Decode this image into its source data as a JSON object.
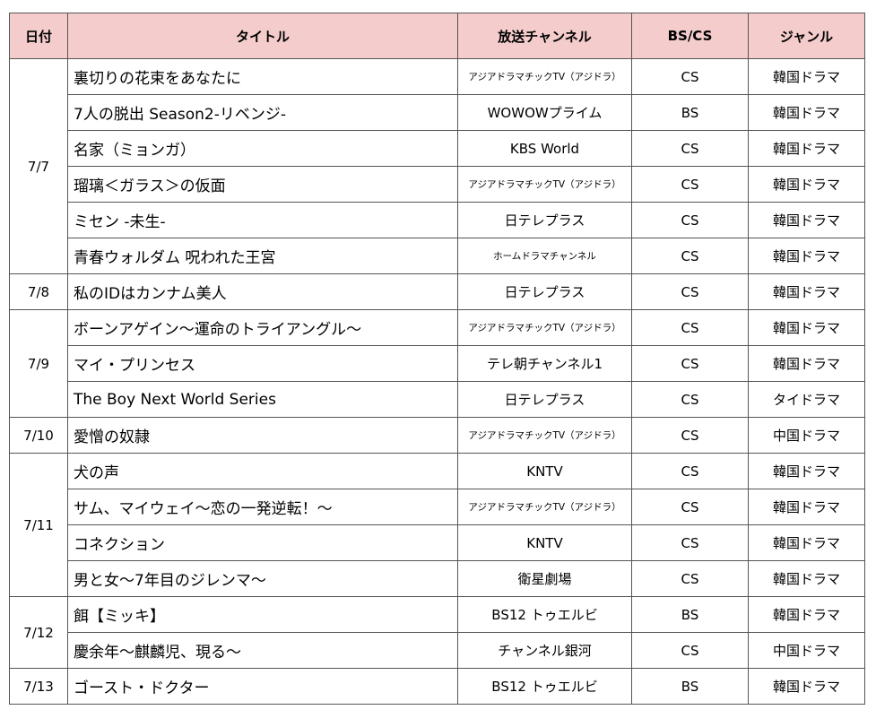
{
  "header": {
    "date": "日付",
    "title": "タイトル",
    "channel": "放送チャンネル",
    "bscs": "BS/CS",
    "genre": "ジャンル"
  },
  "groups": [
    {
      "date": "7/7",
      "rows": [
        {
          "title": "裏切りの花束をあなたに",
          "channel": "アジアドラマチックTV（アジドラ）",
          "small": true,
          "bscs": "CS",
          "genre": "韓国ドラマ"
        },
        {
          "title": "7人の脱出 Season2-リベンジ-",
          "channel": "WOWOWプライム",
          "small": false,
          "bscs": "BS",
          "genre": "韓国ドラマ"
        },
        {
          "title": "名家（ミョンガ）",
          "channel": "KBS World",
          "small": false,
          "bscs": "CS",
          "genre": "韓国ドラマ"
        },
        {
          "title": "瑠璃＜ガラス＞の仮面",
          "channel": "アジアドラマチックTV（アジドラ）",
          "small": true,
          "bscs": "CS",
          "genre": "韓国ドラマ"
        },
        {
          "title": "ミセン -未生-",
          "channel": "日テレプラス",
          "small": false,
          "bscs": "CS",
          "genre": "韓国ドラマ"
        },
        {
          "title": "青春ウォルダム 呪われた王宮",
          "channel": "ホームドラマチャンネル",
          "small": true,
          "bscs": "CS",
          "genre": "韓国ドラマ"
        }
      ]
    },
    {
      "date": "7/8",
      "rows": [
        {
          "title": "私のIDはカンナム美人",
          "channel": "日テレプラス",
          "small": false,
          "bscs": "CS",
          "genre": "韓国ドラマ"
        }
      ]
    },
    {
      "date": "7/9",
      "rows": [
        {
          "title": "ボーンアゲイン～運命のトライアングル～",
          "channel": "アジアドラマチックTV（アジドラ）",
          "small": true,
          "bscs": "CS",
          "genre": "韓国ドラマ"
        },
        {
          "title": "マイ・プリンセス",
          "channel": "テレ朝チャンネル1",
          "small": false,
          "bscs": "CS",
          "genre": "韓国ドラマ"
        },
        {
          "title": "The Boy Next World Series",
          "channel": "日テレプラス",
          "small": false,
          "bscs": "CS",
          "genre": "タイドラマ"
        }
      ]
    },
    {
      "date": "7/10",
      "rows": [
        {
          "title": "愛憎の奴隷",
          "channel": "アジアドラマチックTV（アジドラ）",
          "small": true,
          "bscs": "CS",
          "genre": "中国ドラマ"
        }
      ]
    },
    {
      "date": "7/11",
      "rows": [
        {
          "title": "犬の声",
          "channel": "KNTV",
          "small": false,
          "bscs": "CS",
          "genre": "韓国ドラマ"
        },
        {
          "title": "サム、マイウェイ～恋の一発逆転！～",
          "channel": "アジアドラマチックTV（アジドラ）",
          "small": true,
          "bscs": "CS",
          "genre": "韓国ドラマ"
        },
        {
          "title": "コネクション",
          "channel": "KNTV",
          "small": false,
          "bscs": "CS",
          "genre": "韓国ドラマ"
        },
        {
          "title": "男と女～7年目のジレンマ～",
          "channel": "衛星劇場",
          "small": false,
          "bscs": "CS",
          "genre": "韓国ドラマ"
        }
      ]
    },
    {
      "date": "7/12",
      "rows": [
        {
          "title": "餌【ミッキ】",
          "channel": "BS12 トゥエルビ",
          "small": false,
          "bscs": "BS",
          "genre": "韓国ドラマ"
        },
        {
          "title": "慶余年～麒麟児、現る～",
          "channel": "チャンネル銀河",
          "small": false,
          "bscs": "CS",
          "genre": "中国ドラマ"
        }
      ]
    },
    {
      "date": "7/13",
      "rows": [
        {
          "title": "ゴースト・ドクター",
          "channel": "BS12 トゥエルビ",
          "small": false,
          "bscs": "BS",
          "genre": "韓国ドラマ"
        }
      ]
    }
  ]
}
